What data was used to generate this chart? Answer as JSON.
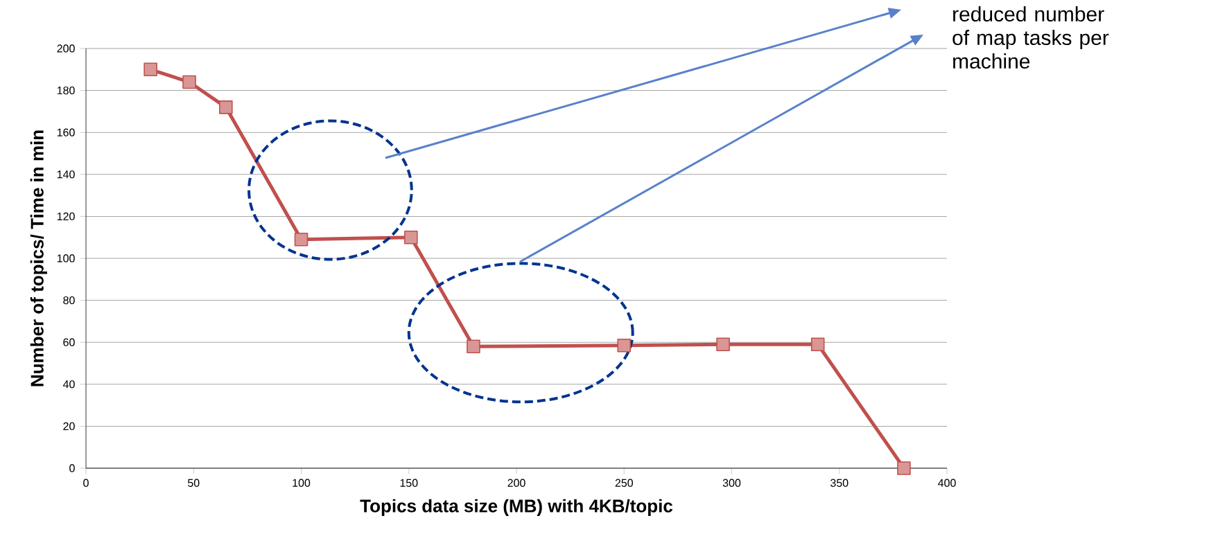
{
  "chart_data": {
    "type": "line",
    "xlabel": "Topics data size (MB) with 4KB/topic",
    "ylabel": "Number of topics/ Time in min",
    "x": [
      30,
      48,
      65,
      100,
      151,
      180,
      250,
      296,
      340,
      380
    ],
    "series": [
      {
        "color": "#c0504d",
        "values": [
          190,
          184,
          172,
          109,
          110,
          58,
          58.5,
          59,
          59,
          0
        ]
      }
    ],
    "xlim": [
      0,
      400
    ],
    "xticks": [
      0,
      50,
      100,
      150,
      200,
      250,
      300,
      350,
      400
    ],
    "ylim": [
      0,
      200
    ],
    "yticks": [
      0,
      20,
      40,
      60,
      80,
      100,
      120,
      140,
      160,
      180,
      200
    ],
    "grid": "y",
    "marker": "square",
    "line_style": "solid",
    "annotations": [
      "reduced number of map tasks per machine"
    ]
  }
}
